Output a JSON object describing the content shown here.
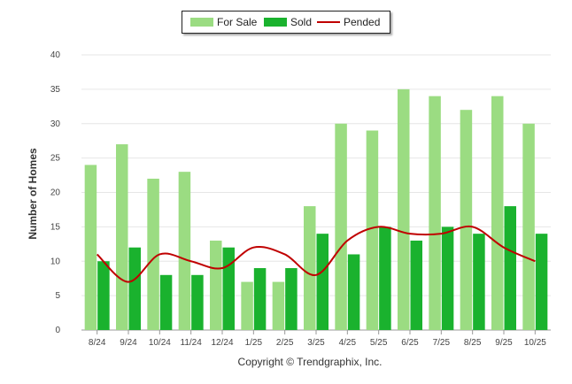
{
  "legend": {
    "for_sale": "For Sale",
    "sold": "Sold",
    "pended": "Pended"
  },
  "footer": "Copyright © Trendgraphix, Inc.",
  "colors": {
    "for_sale": "#9bdc82",
    "sold": "#1ab22e",
    "pended": "#c00000",
    "grid": "#e6e6e6"
  },
  "chart_data": {
    "type": "bar",
    "title": "",
    "xlabel": "",
    "ylabel": "Number of Homes",
    "ylim": [
      0,
      40
    ],
    "yticks": [
      0,
      5,
      10,
      15,
      20,
      25,
      30,
      35,
      40
    ],
    "grid": true,
    "legend_position": "top-center",
    "categories": [
      "8/24",
      "9/24",
      "10/24",
      "11/24",
      "12/24",
      "1/25",
      "2/25",
      "3/25",
      "4/25",
      "5/25",
      "6/25",
      "7/25",
      "8/25",
      "9/25",
      "10/25"
    ],
    "series": [
      {
        "name": "For Sale",
        "type": "bar",
        "values": [
          24,
          27,
          22,
          23,
          13,
          7,
          7,
          18,
          30,
          29,
          35,
          34,
          32,
          34,
          30
        ]
      },
      {
        "name": "Sold",
        "type": "bar",
        "values": [
          10,
          12,
          8,
          8,
          12,
          9,
          9,
          14,
          11,
          15,
          13,
          15,
          14,
          18,
          14
        ]
      },
      {
        "name": "Pended",
        "type": "line",
        "values": [
          11,
          7,
          11,
          10,
          9,
          12,
          11,
          8,
          13,
          15,
          14,
          14,
          15,
          12,
          10
        ]
      }
    ]
  }
}
